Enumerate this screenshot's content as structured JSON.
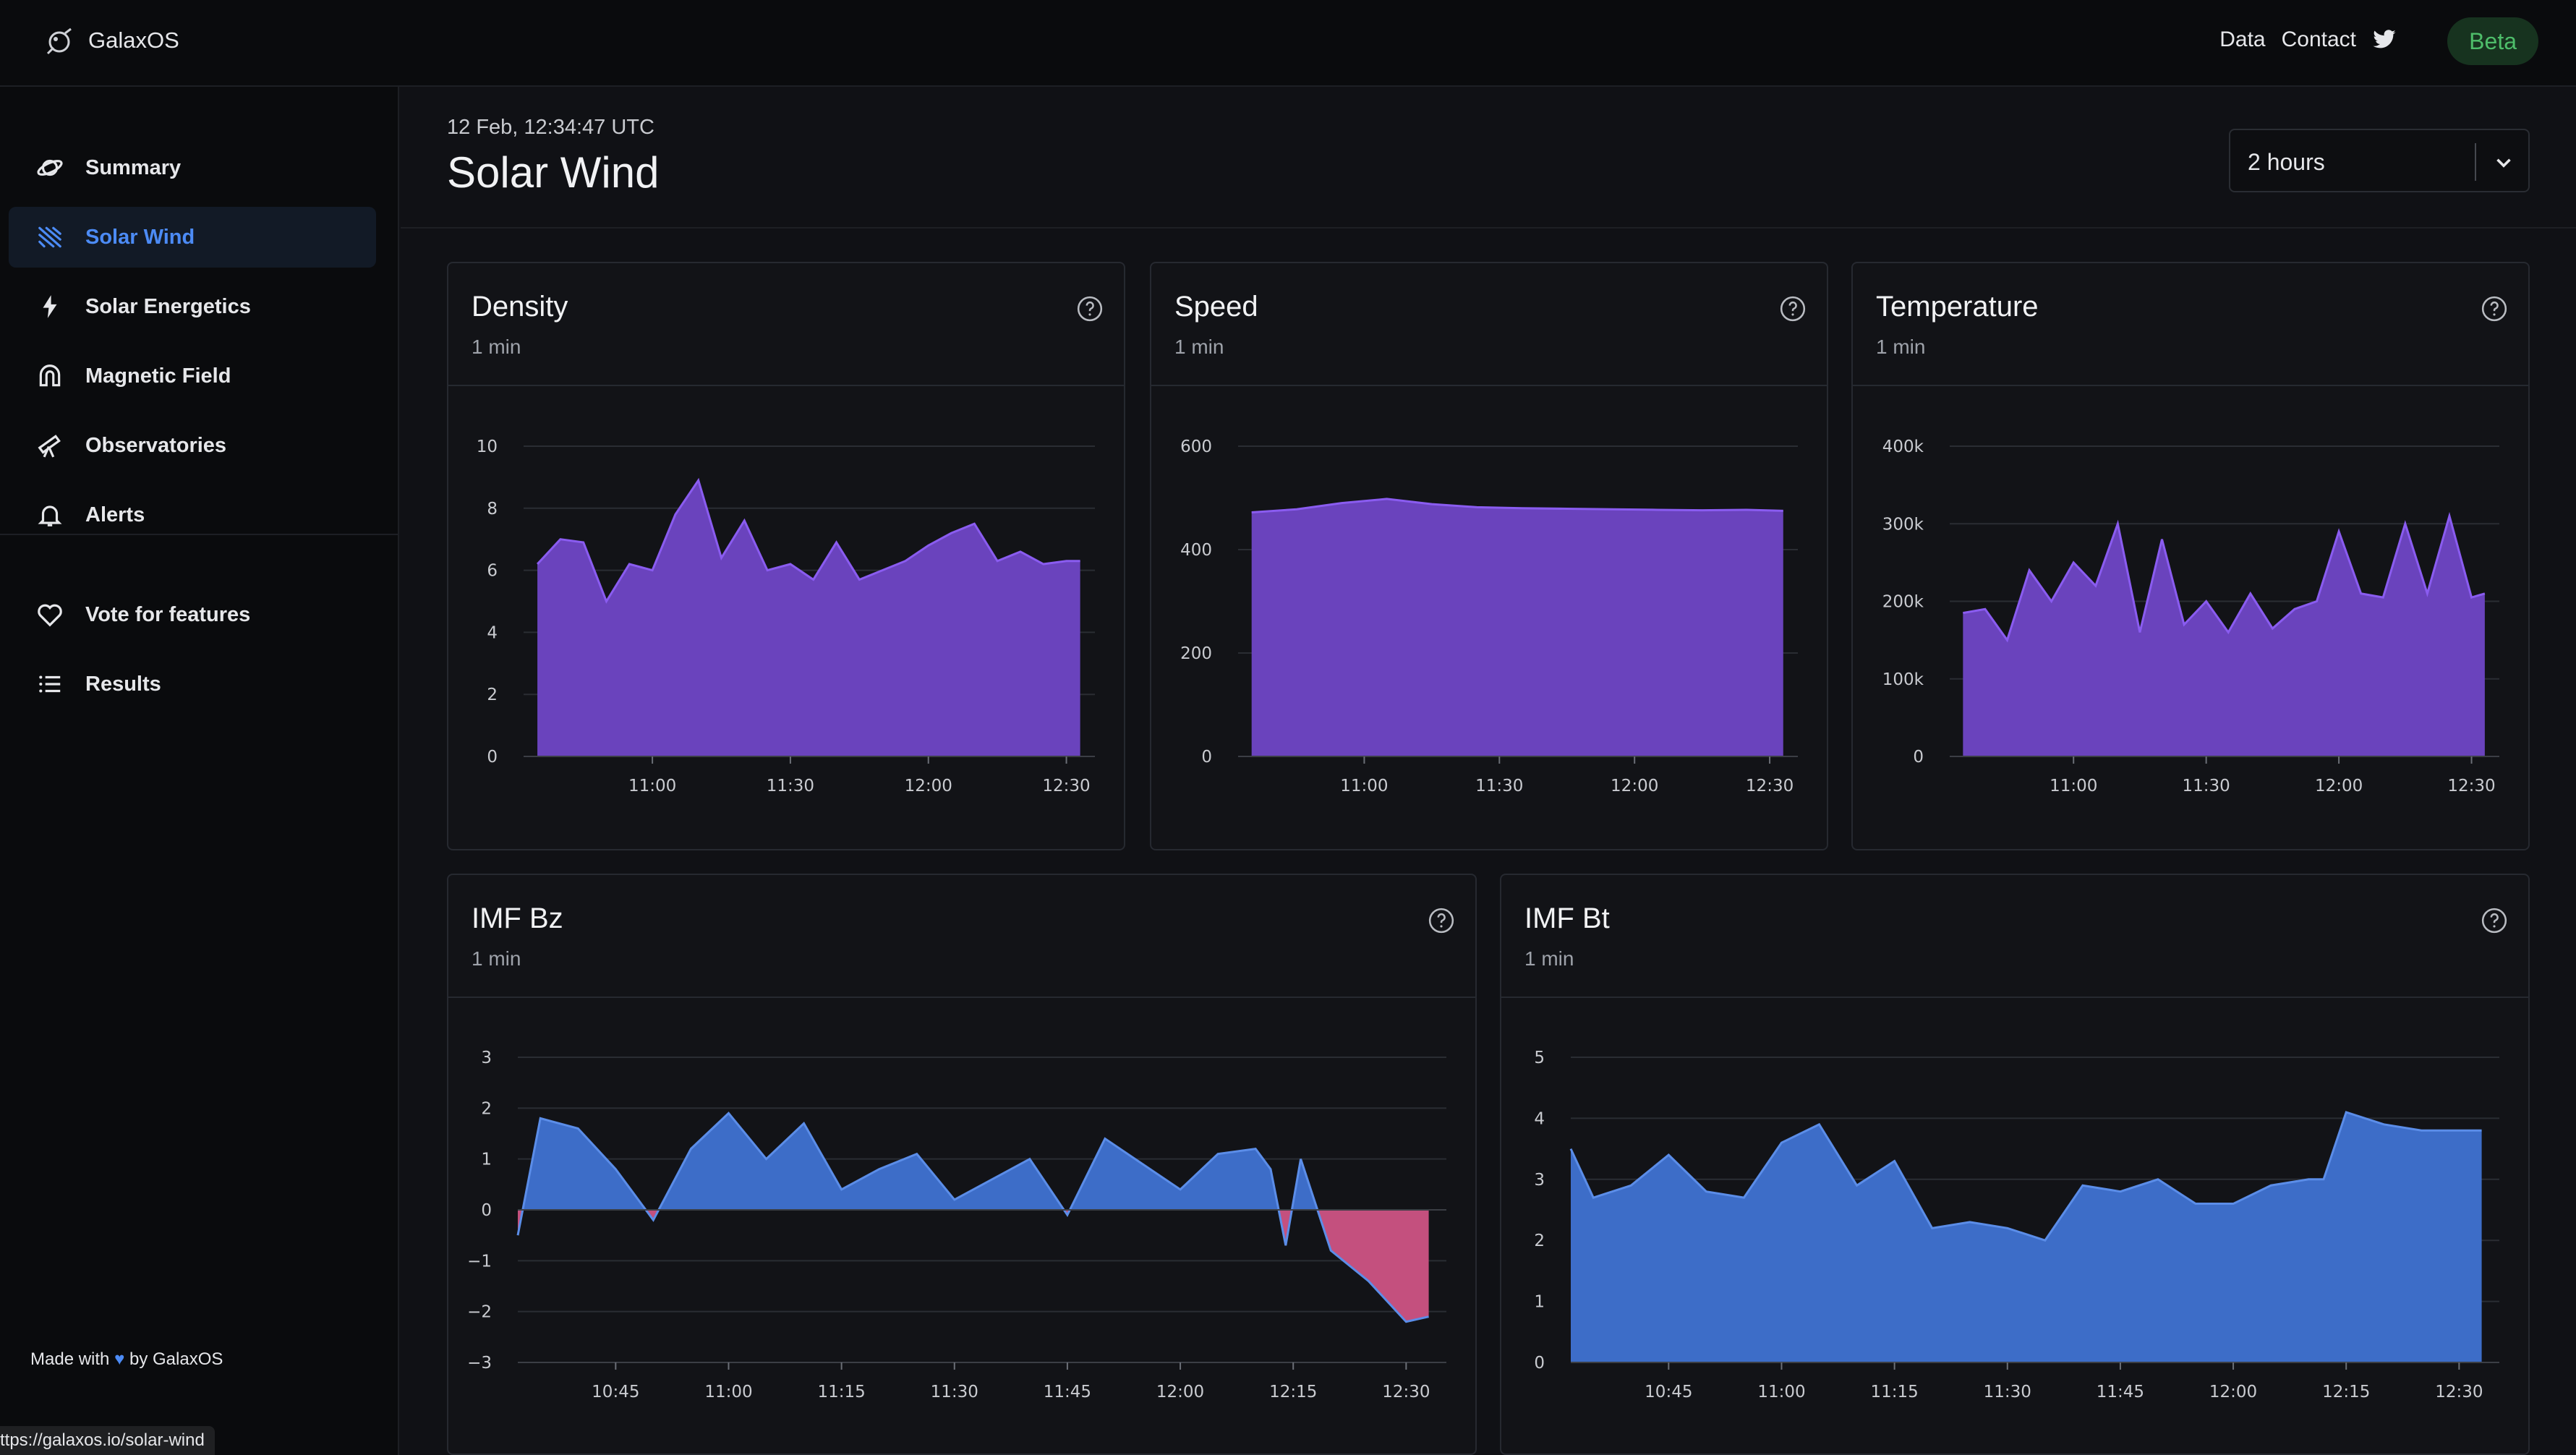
{
  "app": {
    "brand": "GalaxOS",
    "topnav": {
      "data": "Data",
      "contact": "Contact"
    },
    "beta": "Beta",
    "made_with_pre": "Made with",
    "made_with_post": "by GalaxOS",
    "status_url": "ttps://galaxos.io/solar-wind"
  },
  "sidebar": {
    "items": [
      {
        "label": "Summary",
        "icon": "planet-icon"
      },
      {
        "label": "Solar Wind",
        "icon": "wind-icon",
        "active": true
      },
      {
        "label": "Solar Energetics",
        "icon": "bolt-icon"
      },
      {
        "label": "Magnetic Field",
        "icon": "magnet-icon"
      },
      {
        "label": "Observatories",
        "icon": "telescope-icon"
      },
      {
        "label": "Alerts",
        "icon": "bell-icon"
      }
    ],
    "secondary": [
      {
        "label": "Vote for features",
        "icon": "heart-icon"
      },
      {
        "label": "Results",
        "icon": "list-icon"
      }
    ]
  },
  "header": {
    "timestamp": "12 Feb, 12:34:47  UTC",
    "title": "Solar Wind",
    "range": "2 hours"
  },
  "colors": {
    "purple": "#6a43bd",
    "purple_line": "#8a5cf0",
    "blue": "#3d6dc8",
    "blue_line": "#5b8de8",
    "pink": "#c4507e"
  },
  "cards": [
    {
      "title": "Density",
      "subtitle": "1 min"
    },
    {
      "title": "Speed",
      "subtitle": "1 min"
    },
    {
      "title": "Temperature",
      "subtitle": "1 min"
    },
    {
      "title": "IMF Bz",
      "subtitle": "1 min"
    },
    {
      "title": "IMF Bt",
      "subtitle": "1 min"
    }
  ],
  "chart_data": [
    {
      "type": "area",
      "title": "Density",
      "x": [
        "10:35",
        "10:40",
        "10:45",
        "10:50",
        "10:55",
        "11:00",
        "11:05",
        "11:10",
        "11:15",
        "11:20",
        "11:25",
        "11:30",
        "11:35",
        "11:40",
        "11:45",
        "11:50",
        "11:55",
        "12:00",
        "12:05",
        "12:10",
        "12:15",
        "12:20",
        "12:25",
        "12:30",
        "12:33"
      ],
      "values": [
        6.2,
        7.0,
        6.9,
        5.0,
        6.2,
        6.0,
        7.8,
        8.9,
        6.4,
        7.6,
        6.0,
        6.2,
        5.7,
        6.9,
        5.7,
        6.0,
        6.3,
        6.8,
        7.2,
        7.5,
        6.3,
        6.6,
        6.2,
        6.3,
        6.3
      ],
      "yticks": [
        "0",
        "2",
        "4",
        "6",
        "8",
        "10"
      ],
      "ylim": [
        0,
        10
      ],
      "xticks": [
        "11:00",
        "11:30",
        "12:00",
        "12:30"
      ]
    },
    {
      "type": "area",
      "title": "Speed",
      "x": [
        "10:35",
        "10:45",
        "10:55",
        "11:05",
        "11:15",
        "11:25",
        "11:35",
        "11:45",
        "11:55",
        "12:05",
        "12:15",
        "12:25",
        "12:33"
      ],
      "values": [
        472,
        478,
        490,
        498,
        488,
        482,
        480,
        479,
        478,
        477,
        476,
        477,
        475
      ],
      "yticks": [
        "0",
        "200",
        "400",
        "600"
      ],
      "ylim": [
        0,
        600
      ],
      "xticks": [
        "11:00",
        "11:30",
        "12:00",
        "12:30"
      ]
    },
    {
      "type": "area",
      "title": "Temperature",
      "x": [
        "10:35",
        "10:40",
        "10:45",
        "10:50",
        "10:55",
        "11:00",
        "11:05",
        "11:10",
        "11:15",
        "11:20",
        "11:25",
        "11:30",
        "11:35",
        "11:40",
        "11:45",
        "11:50",
        "11:55",
        "12:00",
        "12:05",
        "12:10",
        "12:15",
        "12:20",
        "12:25",
        "12:30",
        "12:33"
      ],
      "values": [
        185000,
        190000,
        150000,
        240000,
        200000,
        250000,
        220000,
        300000,
        160000,
        280000,
        170000,
        200000,
        160000,
        210000,
        165000,
        190000,
        200000,
        290000,
        210000,
        205000,
        300000,
        210000,
        310000,
        205000,
        210000
      ],
      "yticks": [
        "0",
        "100k",
        "200k",
        "300k",
        "400k"
      ],
      "ylim": [
        0,
        400000
      ],
      "xticks": [
        "11:00",
        "11:30",
        "12:00",
        "12:30"
      ]
    },
    {
      "type": "area",
      "title": "IMF Bz",
      "x": [
        "10:32",
        "10:35",
        "10:40",
        "10:45",
        "10:50",
        "10:55",
        "11:00",
        "11:05",
        "11:10",
        "11:15",
        "11:20",
        "11:25",
        "11:30",
        "11:35",
        "11:40",
        "11:45",
        "11:50",
        "11:55",
        "12:00",
        "12:05",
        "12:10",
        "12:12",
        "12:14",
        "12:16",
        "12:20",
        "12:25",
        "12:30",
        "12:33"
      ],
      "values": [
        -0.5,
        1.8,
        1.6,
        0.8,
        -0.2,
        1.2,
        1.9,
        1.0,
        1.7,
        0.4,
        0.8,
        1.1,
        0.2,
        0.6,
        1.0,
        -0.1,
        1.4,
        0.9,
        0.4,
        1.1,
        1.2,
        0.8,
        -0.7,
        1.0,
        -0.8,
        -1.4,
        -2.2,
        -2.1
      ],
      "yticks": [
        "3",
        "2",
        "1",
        "0",
        "−1",
        "−2",
        "−3"
      ],
      "ylim": [
        -3,
        3
      ],
      "xticks": [
        "10:45",
        "11:00",
        "11:15",
        "11:30",
        "11:45",
        "12:00",
        "12:15",
        "12:30"
      ]
    },
    {
      "type": "area",
      "title": "IMF Bt",
      "x": [
        "10:32",
        "10:35",
        "10:40",
        "10:45",
        "10:50",
        "10:55",
        "11:00",
        "11:05",
        "11:10",
        "11:15",
        "11:20",
        "11:25",
        "11:30",
        "11:35",
        "11:40",
        "11:45",
        "11:50",
        "11:55",
        "12:00",
        "12:05",
        "12:10",
        "12:12",
        "12:15",
        "12:20",
        "12:25",
        "12:30",
        "12:33"
      ],
      "values": [
        3.5,
        2.7,
        2.9,
        3.4,
        2.8,
        2.7,
        3.6,
        3.9,
        2.9,
        3.3,
        2.2,
        2.3,
        2.2,
        2.0,
        2.9,
        2.8,
        3.0,
        2.6,
        2.6,
        2.9,
        3.0,
        3.0,
        4.1,
        3.9,
        3.8,
        3.8,
        3.8
      ],
      "yticks": [
        "0",
        "1",
        "2",
        "3",
        "4",
        "5"
      ],
      "ylim": [
        0,
        5
      ],
      "xticks": [
        "10:45",
        "11:00",
        "11:15",
        "11:30",
        "11:45",
        "12:00",
        "12:15",
        "12:30"
      ]
    }
  ]
}
